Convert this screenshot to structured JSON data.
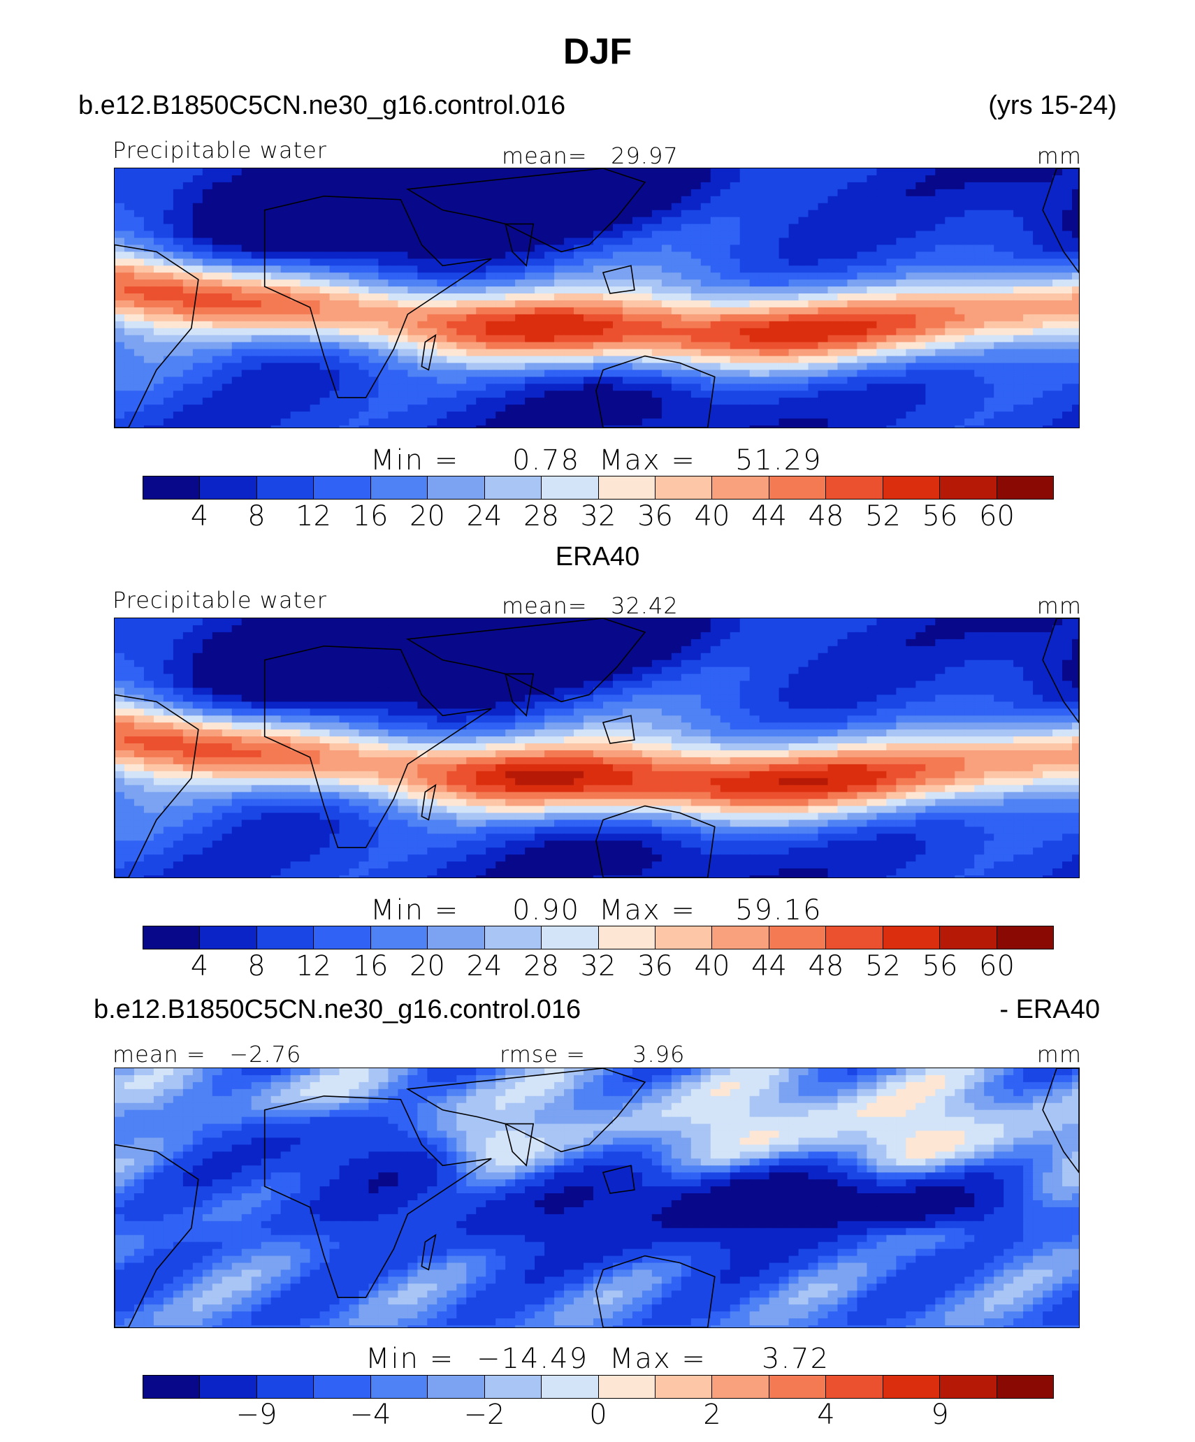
{
  "title": "DJF",
  "panels": [
    {
      "header_left": "b.e12.B1850C5CN.ne30_g16.control.016",
      "header_right": "(yrs 15-24)",
      "field": "Precipitable water",
      "stat_center": "mean=   29.97",
      "units": "mm",
      "minmax": {
        "min_label": "Min =",
        "min_value": "0.78",
        "max_label": "Max =",
        "max_value": "51.29"
      },
      "colorbar_ticks": [
        "4",
        "8",
        "12",
        "16",
        "20",
        "24",
        "28",
        "32",
        "36",
        "40",
        "44",
        "48",
        "52",
        "56",
        "60"
      ],
      "intensity": 0.85
    },
    {
      "header_center": "ERA40",
      "field": "Precipitable water",
      "stat_center": "mean=   32.42",
      "units": "mm",
      "minmax": {
        "min_label": "Min =",
        "min_value": "0.90",
        "max_label": "Max =",
        "max_value": "59.16"
      },
      "colorbar_ticks": [
        "4",
        "8",
        "12",
        "16",
        "20",
        "24",
        "28",
        "32",
        "36",
        "40",
        "44",
        "48",
        "52",
        "56",
        "60"
      ],
      "intensity": 1.0
    },
    {
      "header_left": "b.e12.B1850C5CN.ne30_g16.control.016",
      "header_right": "- ERA40",
      "stat_left": "mean =   −2.76",
      "stat_center": "rmse =      3.96",
      "units": "mm",
      "minmax": {
        "min_label": "Min =",
        "min_value": "−14.49",
        "max_label": "Max =",
        "max_value": "3.72"
      },
      "colorbar_ticks": [
        "−9",
        "−4",
        "−2",
        "0",
        "2",
        "4",
        "9"
      ]
    }
  ],
  "colorbar_colors": [
    "#08088a",
    "#0a24c8",
    "#1a46e6",
    "#2f62f5",
    "#4f82f4",
    "#7ba3f2",
    "#a8c5f5",
    "#d3e3f8",
    "#fde6d4",
    "#fcc6a7",
    "#f9a07c",
    "#f47a53",
    "#ec512f",
    "#da2e0e",
    "#b61a06",
    "#8a0a03"
  ],
  "map_features": [
    "Africa",
    "Asia",
    "Australia",
    "South America",
    "Maritime Continent",
    "Central America"
  ]
}
